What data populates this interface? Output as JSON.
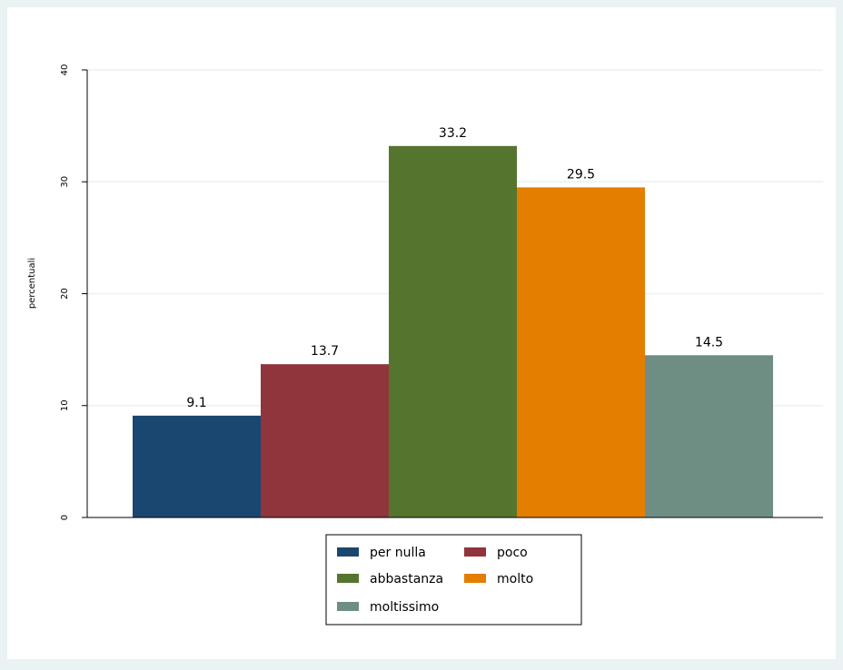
{
  "chart_data": {
    "type": "bar",
    "title": "",
    "xlabel": "",
    "ylabel": "percentuali",
    "ylim": [
      0,
      40
    ],
    "yticks": [
      0,
      10,
      20,
      30,
      40
    ],
    "ytick_labels": [
      "0",
      "10",
      "20",
      "30",
      "40"
    ],
    "grid": true,
    "legend_position": "bottom-center",
    "legend_columns": 2,
    "series": [
      {
        "name": "per nulla",
        "value": 9.1,
        "label": "9.1",
        "color": "#1a476f"
      },
      {
        "name": "poco",
        "value": 13.7,
        "label": "13.7",
        "color": "#90353b"
      },
      {
        "name": "abbastanza",
        "value": 33.2,
        "label": "33.2",
        "color": "#55752f"
      },
      {
        "name": "molto",
        "value": 29.5,
        "label": "29.5",
        "color": "#e37e00"
      },
      {
        "name": "moltissimo",
        "value": 14.5,
        "label": "14.5",
        "color": "#6e8e84"
      }
    ]
  },
  "colors": {
    "outer_background": "#eaf2f3",
    "plot_background": "#ffffff",
    "gridline": "#eaf2f3",
    "axis": "#000000"
  }
}
